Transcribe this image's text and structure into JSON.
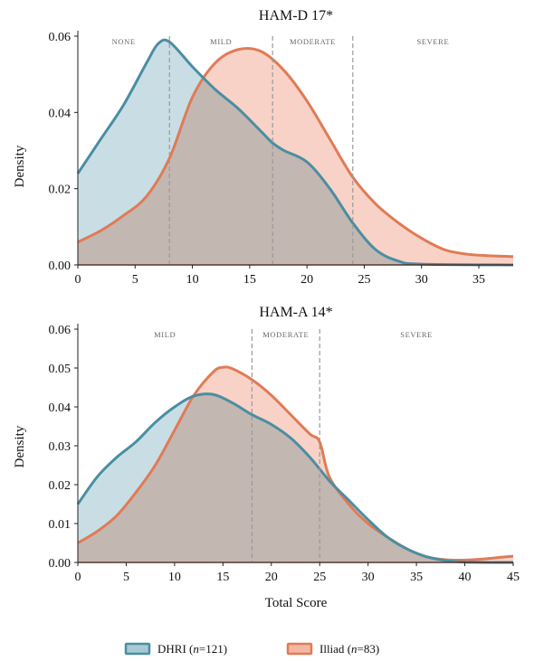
{
  "chart_data": [
    {
      "type": "area",
      "title": "HAM-D 17*",
      "xlabel": "",
      "ylabel": "Density",
      "xlim": [
        0,
        38
      ],
      "ylim": [
        0,
        0.06
      ],
      "xticks": [
        0,
        5,
        10,
        15,
        20,
        25,
        30,
        35
      ],
      "yticks": [
        "0.00",
        "0.02",
        "0.04",
        "0.06"
      ],
      "thresholds": [
        8,
        17,
        24
      ],
      "regions": [
        {
          "label": "NONE",
          "x": 4
        },
        {
          "label": "MILD",
          "x": 12.5
        },
        {
          "label": "MODERATE",
          "x": 20.5
        },
        {
          "label": "SEVERE",
          "x": 31
        }
      ],
      "series": [
        {
          "name": "DHRI",
          "x": [
            0,
            2,
            4,
            6,
            7,
            8,
            10,
            12,
            14,
            16,
            17,
            18,
            20,
            22,
            24,
            26,
            28,
            30,
            38
          ],
          "y": [
            0.024,
            0.033,
            0.042,
            0.053,
            0.058,
            0.0585,
            0.052,
            0.046,
            0.041,
            0.035,
            0.032,
            0.03,
            0.027,
            0.02,
            0.011,
            0.004,
            0.001,
            0.0002,
            0.0
          ]
        },
        {
          "name": "Illiad",
          "x": [
            0,
            2,
            4,
            6,
            8,
            10,
            12,
            14,
            16,
            18,
            20,
            22,
            24,
            26,
            28,
            30,
            32,
            34,
            36,
            38
          ],
          "y": [
            0.006,
            0.009,
            0.013,
            0.018,
            0.028,
            0.044,
            0.053,
            0.0565,
            0.056,
            0.051,
            0.043,
            0.033,
            0.023,
            0.016,
            0.011,
            0.007,
            0.004,
            0.0028,
            0.0024,
            0.0022
          ]
        }
      ]
    },
    {
      "type": "area",
      "title": "HAM-A 14*",
      "xlabel": "Total Score",
      "ylabel": "Density",
      "xlim": [
        0,
        45
      ],
      "ylim": [
        0,
        0.06
      ],
      "xticks": [
        0,
        5,
        10,
        15,
        20,
        25,
        30,
        35,
        40,
        45
      ],
      "yticks": [
        "0.00",
        "0.01",
        "0.02",
        "0.03",
        "0.04",
        "0.05",
        "0.06"
      ],
      "thresholds": [
        18,
        25
      ],
      "regions": [
        {
          "label": "MILD",
          "x": 9
        },
        {
          "label": "MODERATE",
          "x": 21.5
        },
        {
          "label": "SEVERE",
          "x": 35
        }
      ],
      "series": [
        {
          "name": "DHRI",
          "x": [
            0,
            2,
            4,
            6,
            8,
            10,
            12,
            14,
            16,
            18,
            20,
            22,
            24,
            26,
            28,
            30,
            32,
            34,
            36,
            38,
            40,
            45
          ],
          "y": [
            0.015,
            0.022,
            0.027,
            0.031,
            0.036,
            0.04,
            0.0428,
            0.0432,
            0.041,
            0.038,
            0.0355,
            0.032,
            0.027,
            0.021,
            0.016,
            0.011,
            0.0065,
            0.0035,
            0.0015,
            0.0005,
            0.0001,
            0.0
          ]
        },
        {
          "name": "Illiad",
          "x": [
            0,
            2,
            4,
            6,
            8,
            10,
            12,
            14,
            15,
            16,
            18,
            20,
            22,
            24,
            25,
            26,
            28,
            30,
            32,
            34,
            36,
            38,
            40,
            42,
            44,
            45
          ],
          "y": [
            0.005,
            0.008,
            0.012,
            0.018,
            0.025,
            0.034,
            0.043,
            0.049,
            0.0502,
            0.0498,
            0.047,
            0.043,
            0.038,
            0.033,
            0.031,
            0.022,
            0.015,
            0.01,
            0.0065,
            0.0035,
            0.0015,
            0.0007,
            0.0006,
            0.0009,
            0.0014,
            0.0016
          ]
        }
      ]
    }
  ],
  "legend": {
    "position": "bottom",
    "items": [
      {
        "name": "DHRI",
        "n_label": "n",
        "n_value": "=121)"
      },
      {
        "name": "Illiad",
        "n_label": "n",
        "n_value": "=83)"
      }
    ]
  },
  "colors": {
    "dhri_line": "#4a8ea3",
    "dhri_fill": "#a8c9d4",
    "illiad_line": "#e07b56",
    "illiad_fill": "#f3b7a3",
    "threshold": "#9a9a9a",
    "axis": "#222222",
    "baseline": "#c0392b"
  }
}
